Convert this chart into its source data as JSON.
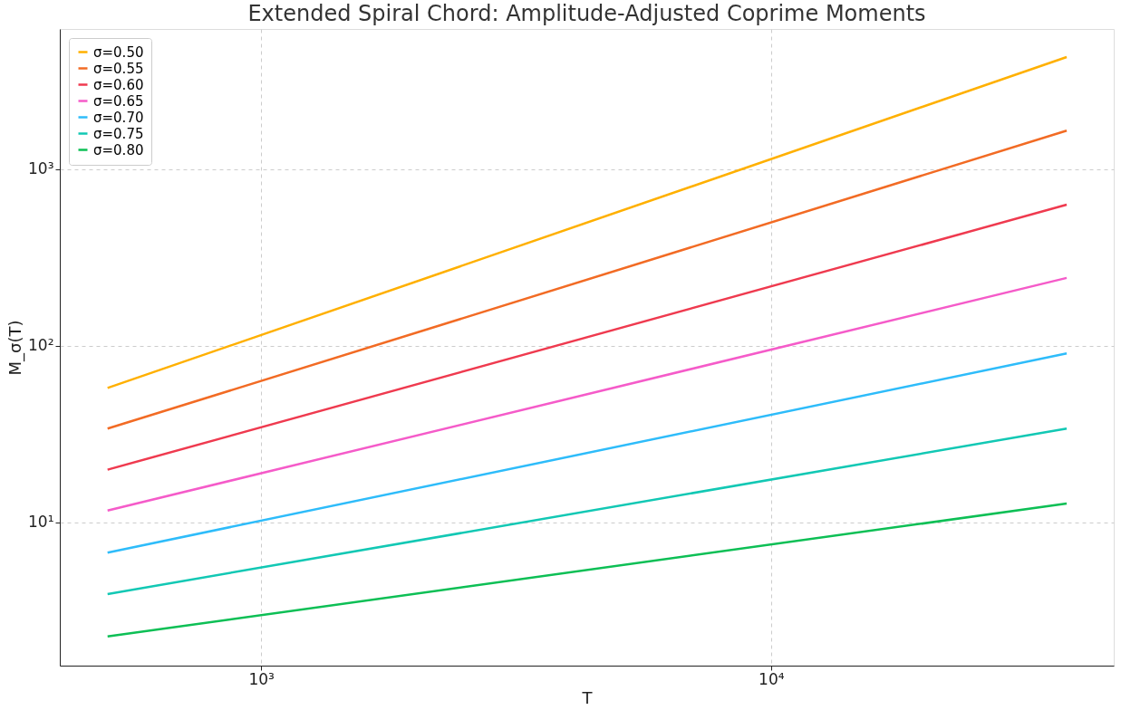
{
  "chart_data": {
    "type": "line",
    "title": "Extended Spiral Chord: Amplitude-Adjusted Coprime Moments",
    "xlabel": "T",
    "ylabel": "M_σ(T)",
    "log": "xy",
    "grid": true,
    "legend": "top left",
    "line_style": "solid",
    "marker": "none",
    "x": [
      500,
      38000
    ],
    "xlim": [
      403,
      47000
    ],
    "ylim": [
      1.55,
      6200
    ],
    "xticks": [
      {
        "value": 1000,
        "label": "10³"
      },
      {
        "value": 10000,
        "label": "10⁴"
      }
    ],
    "yticks": [
      {
        "value": 10,
        "label": "10¹"
      },
      {
        "value": 100,
        "label": "10²"
      },
      {
        "value": 1000,
        "label": "10³"
      }
    ],
    "series": [
      {
        "name": "σ=0.50",
        "color": "#ffb000",
        "values": [
          57.7,
          4300
        ]
      },
      {
        "name": "σ=0.55",
        "color": "#f26b24",
        "values": [
          34,
          1650
        ]
      },
      {
        "name": "σ=0.60",
        "color": "#ef3a4f",
        "values": [
          19.9,
          628
        ]
      },
      {
        "name": "σ=0.65",
        "color": "#f55bc9",
        "values": [
          11.7,
          242
        ]
      },
      {
        "name": "σ=0.70",
        "color": "#2ebcfa",
        "values": [
          6.76,
          90.6
        ]
      },
      {
        "name": "σ=0.75",
        "color": "#12c8b4",
        "values": [
          3.94,
          34
        ]
      },
      {
        "name": "σ=0.80",
        "color": "#0dbf55",
        "values": [
          2.27,
          12.8
        ]
      }
    ]
  }
}
